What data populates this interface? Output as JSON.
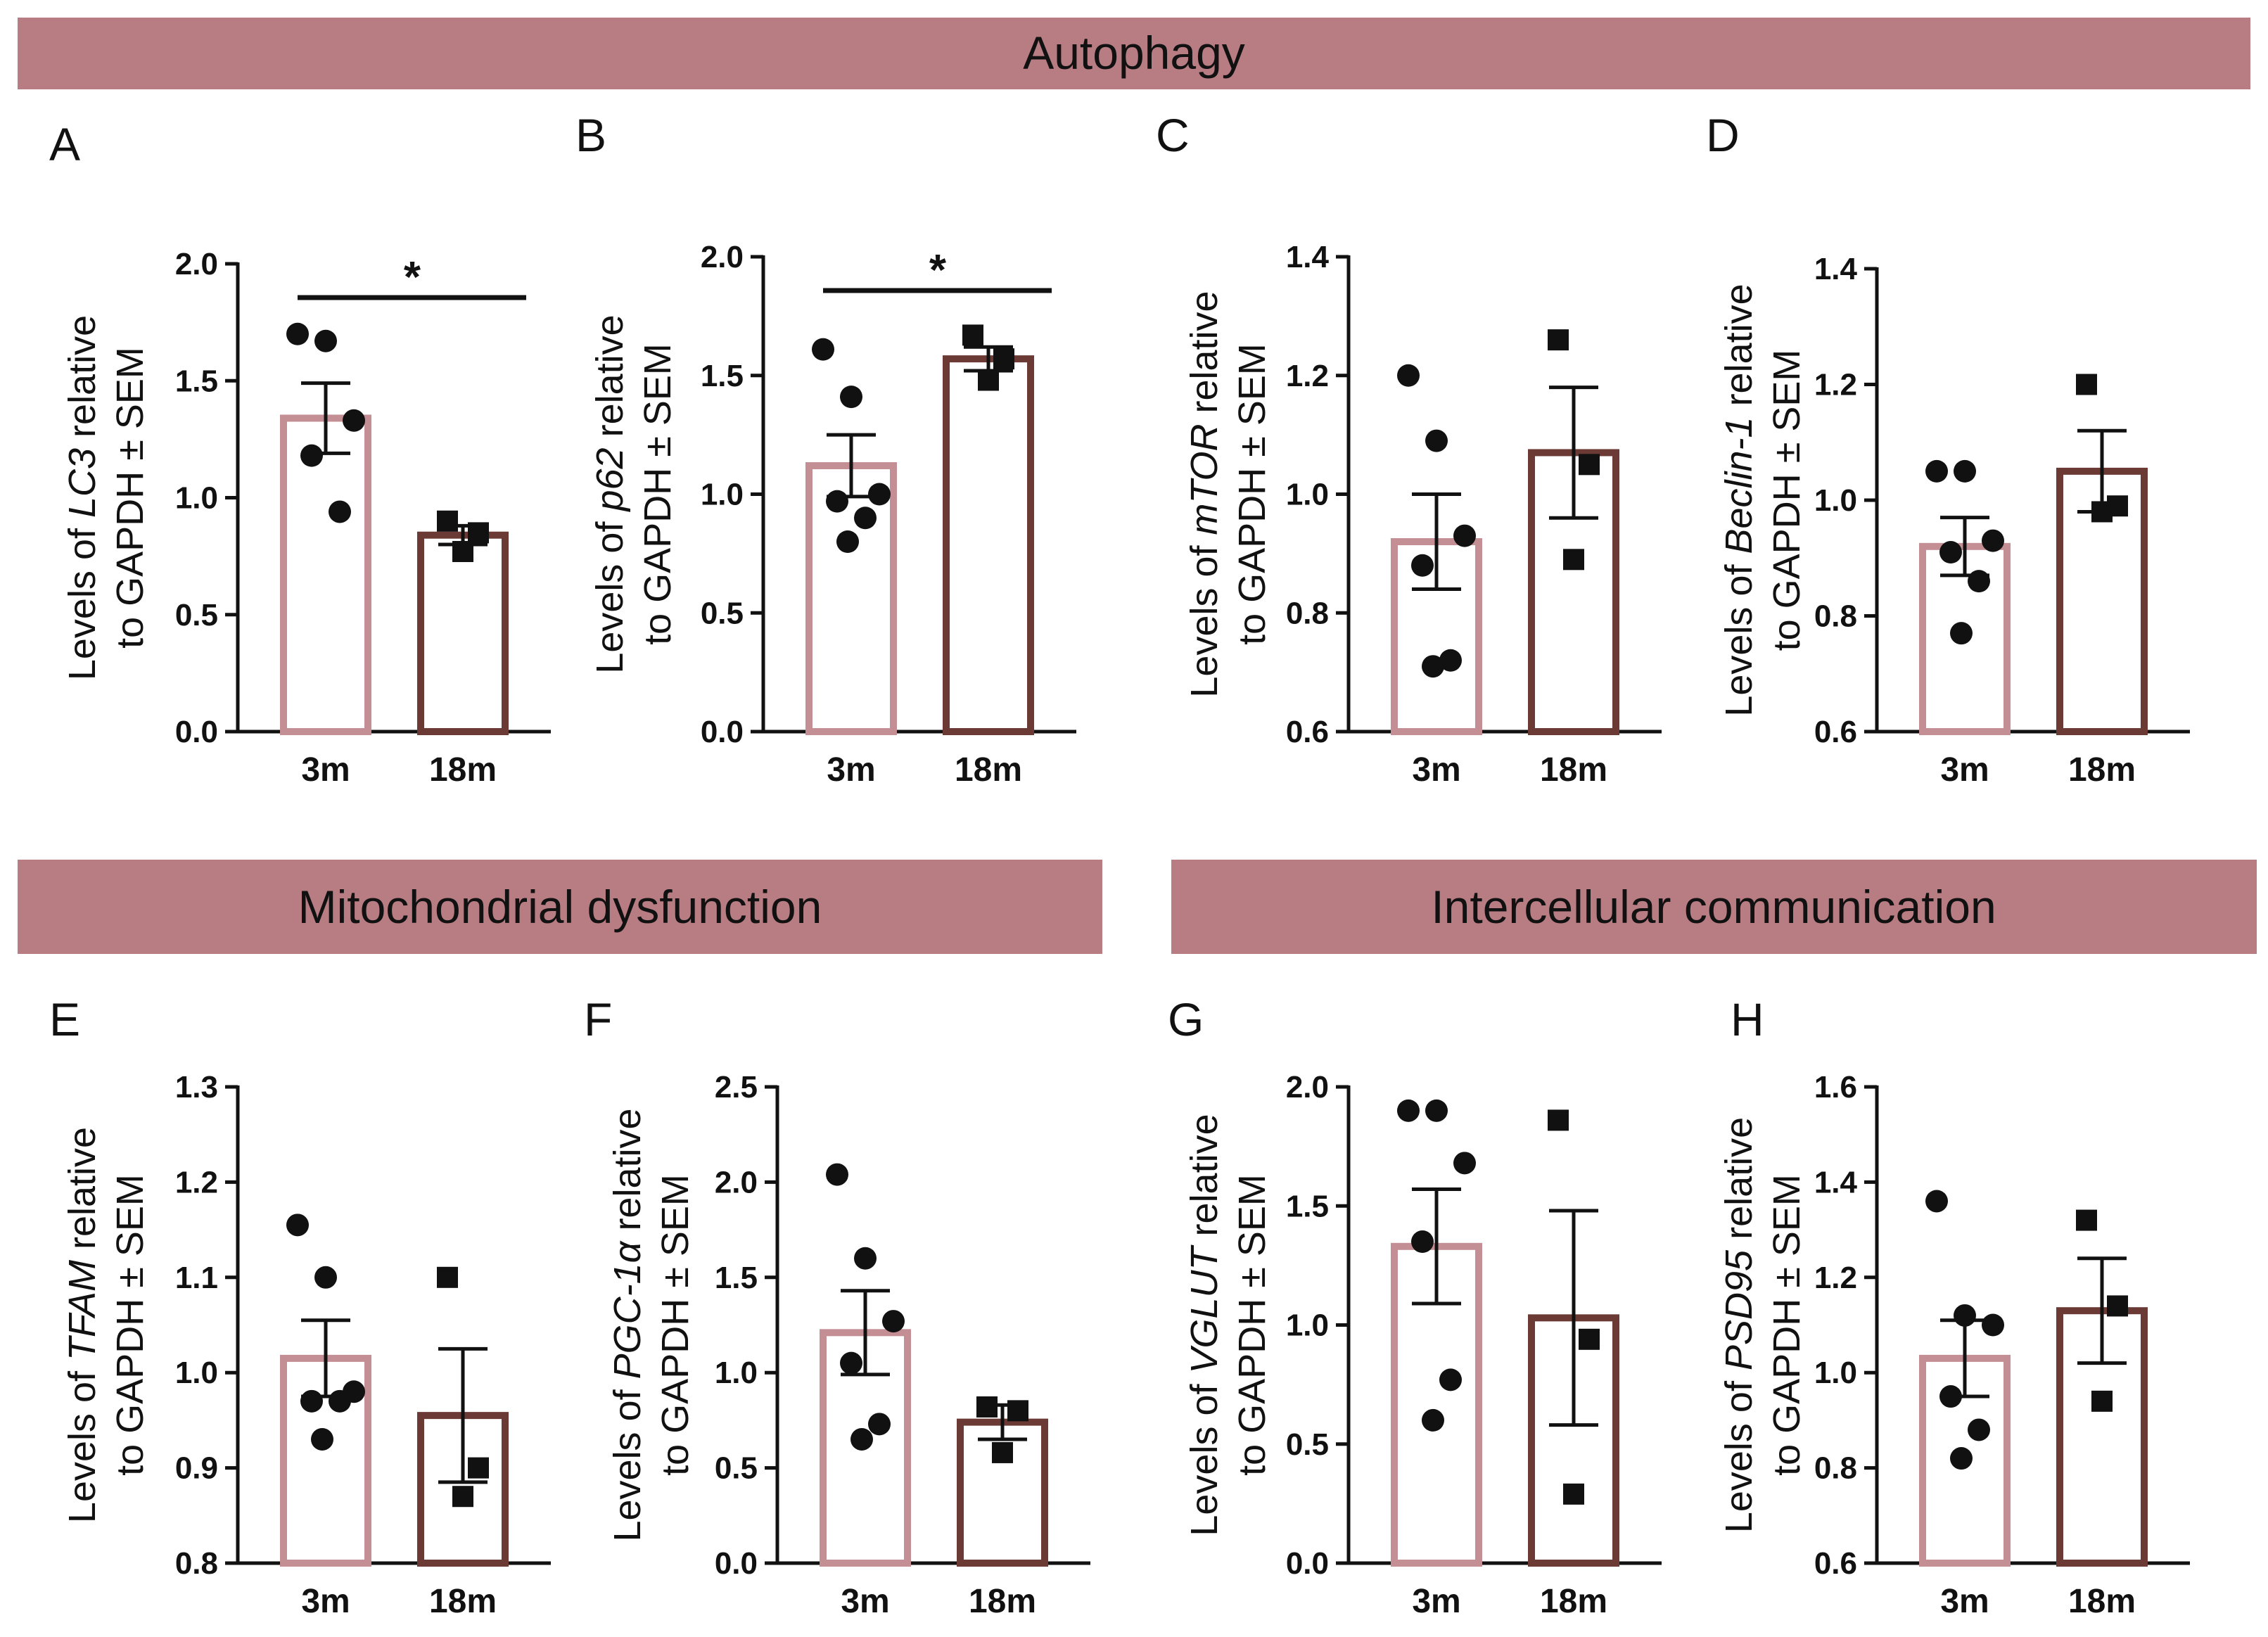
{
  "colors": {
    "banner": "#b87d83",
    "young": "#c48e95",
    "old": "#6b3a34",
    "ink": "#111111"
  },
  "sections": [
    {
      "key": "autophagy",
      "label": "Autophagy"
    },
    {
      "key": "mito",
      "label": "Mitochondrial dysfunction"
    },
    {
      "key": "comm",
      "label": "Intercellular communication"
    }
  ],
  "ylabel_common": {
    "prefix": "Levels of ",
    "suffix": " relative",
    "line2": "to GAPDH ± SEM"
  },
  "chart_data": [
    {
      "panel": "A",
      "type": "bar",
      "gene": "LC3",
      "categories": [
        "3m",
        "18m"
      ],
      "ylim": [
        0.0,
        2.0
      ],
      "yticks": [
        "0.0",
        "0.5",
        "1.0",
        "1.5",
        "2.0"
      ],
      "series": [
        {
          "name": "3m",
          "mean": 1.34,
          "sem": 0.15,
          "marker": "circle",
          "points": [
            1.7,
            1.67,
            1.33,
            1.18,
            0.94
          ]
        },
        {
          "name": "18m",
          "mean": 0.84,
          "sem": 0.04,
          "marker": "square",
          "points": [
            0.9,
            0.85,
            0.77
          ]
        }
      ],
      "significance": "*"
    },
    {
      "panel": "B",
      "type": "bar",
      "gene": "p62",
      "categories": [
        "3m",
        "18m"
      ],
      "ylim": [
        0.0,
        2.0
      ],
      "yticks": [
        "0.0",
        "0.5",
        "1.0",
        "1.5",
        "2.0"
      ],
      "series": [
        {
          "name": "3m",
          "mean": 1.12,
          "sem": 0.13,
          "marker": "circle",
          "points": [
            1.61,
            1.41,
            1.0,
            0.97,
            0.9,
            0.8
          ]
        },
        {
          "name": "18m",
          "mean": 1.57,
          "sem": 0.05,
          "marker": "square",
          "points": [
            1.67,
            1.57,
            1.48
          ]
        }
      ],
      "significance": "*"
    },
    {
      "panel": "C",
      "type": "bar",
      "gene": "mTOR",
      "categories": [
        "3m",
        "18m"
      ],
      "ylim": [
        0.6,
        1.4
      ],
      "yticks": [
        "0.6",
        "0.8",
        "1.0",
        "1.2",
        "1.4"
      ],
      "series": [
        {
          "name": "3m",
          "mean": 0.92,
          "sem": 0.08,
          "marker": "circle",
          "points": [
            1.2,
            1.09,
            0.93,
            0.88,
            0.72,
            0.71
          ]
        },
        {
          "name": "18m",
          "mean": 1.07,
          "sem": 0.11,
          "marker": "square",
          "points": [
            1.26,
            1.05,
            0.89
          ]
        }
      ],
      "significance": ""
    },
    {
      "panel": "D",
      "type": "bar",
      "gene": "Beclin-1",
      "categories": [
        "3m",
        "18m"
      ],
      "ylim": [
        0.6,
        1.4
      ],
      "yticks": [
        "0.6",
        "0.8",
        "1.0",
        "1.2",
        "1.4"
      ],
      "series": [
        {
          "name": "3m",
          "mean": 0.92,
          "sem": 0.05,
          "marker": "circle",
          "points": [
            1.05,
            1.05,
            0.93,
            0.91,
            0.86,
            0.77
          ]
        },
        {
          "name": "18m",
          "mean": 1.05,
          "sem": 0.07,
          "marker": "square",
          "points": [
            1.2,
            0.99,
            0.98
          ]
        }
      ],
      "significance": ""
    },
    {
      "panel": "E",
      "type": "bar",
      "gene": "TFAM",
      "categories": [
        "3m",
        "18m"
      ],
      "ylim": [
        0.8,
        1.3
      ],
      "yticks": [
        "0.8",
        "0.9",
        "1.0",
        "1.1",
        "1.2",
        "1.3"
      ],
      "series": [
        {
          "name": "3m",
          "mean": 1.015,
          "sem": 0.04,
          "marker": "circle",
          "points": [
            1.155,
            1.1,
            0.98,
            0.97,
            0.97,
            0.93
          ]
        },
        {
          "name": "18m",
          "mean": 0.955,
          "sem": 0.07,
          "marker": "square",
          "points": [
            1.1,
            0.9,
            0.87
          ]
        }
      ],
      "significance": ""
    },
    {
      "panel": "F",
      "type": "bar",
      "gene": "PGC-1α",
      "categories": [
        "3m",
        "18m"
      ],
      "ylim": [
        0.0,
        2.5
      ],
      "yticks": [
        "0.0",
        "0.5",
        "1.0",
        "1.5",
        "2.0",
        "2.5"
      ],
      "series": [
        {
          "name": "3m",
          "mean": 1.21,
          "sem": 0.22,
          "marker": "circle",
          "points": [
            2.04,
            1.6,
            1.27,
            1.05,
            0.73,
            0.65
          ]
        },
        {
          "name": "18m",
          "mean": 0.74,
          "sem": 0.09,
          "marker": "square",
          "points": [
            0.82,
            0.8,
            0.58
          ]
        }
      ],
      "significance": ""
    },
    {
      "panel": "G",
      "type": "bar",
      "gene": "VGLUT",
      "categories": [
        "3m",
        "18m"
      ],
      "ylim": [
        0.0,
        2.0
      ],
      "yticks": [
        "0.0",
        "0.5",
        "1.0",
        "1.5",
        "2.0"
      ],
      "series": [
        {
          "name": "3m",
          "mean": 1.33,
          "sem": 0.24,
          "marker": "circle",
          "points": [
            1.9,
            1.9,
            1.68,
            1.35,
            0.77,
            0.6
          ]
        },
        {
          "name": "18m",
          "mean": 1.03,
          "sem": 0.45,
          "marker": "square",
          "points": [
            1.86,
            0.94,
            0.29
          ]
        }
      ],
      "significance": ""
    },
    {
      "panel": "H",
      "type": "bar",
      "gene": "PSD95",
      "categories": [
        "3m",
        "18m"
      ],
      "ylim": [
        0.6,
        1.6
      ],
      "yticks": [
        "0.6",
        "0.8",
        "1.0",
        "1.2",
        "1.4",
        "1.6"
      ],
      "series": [
        {
          "name": "3m",
          "mean": 1.03,
          "sem": 0.08,
          "marker": "circle",
          "points": [
            1.36,
            1.12,
            1.1,
            0.95,
            0.88,
            0.82
          ]
        },
        {
          "name": "18m",
          "mean": 1.13,
          "sem": 0.11,
          "marker": "square",
          "points": [
            1.32,
            1.14,
            0.94
          ]
        }
      ],
      "significance": ""
    }
  ]
}
